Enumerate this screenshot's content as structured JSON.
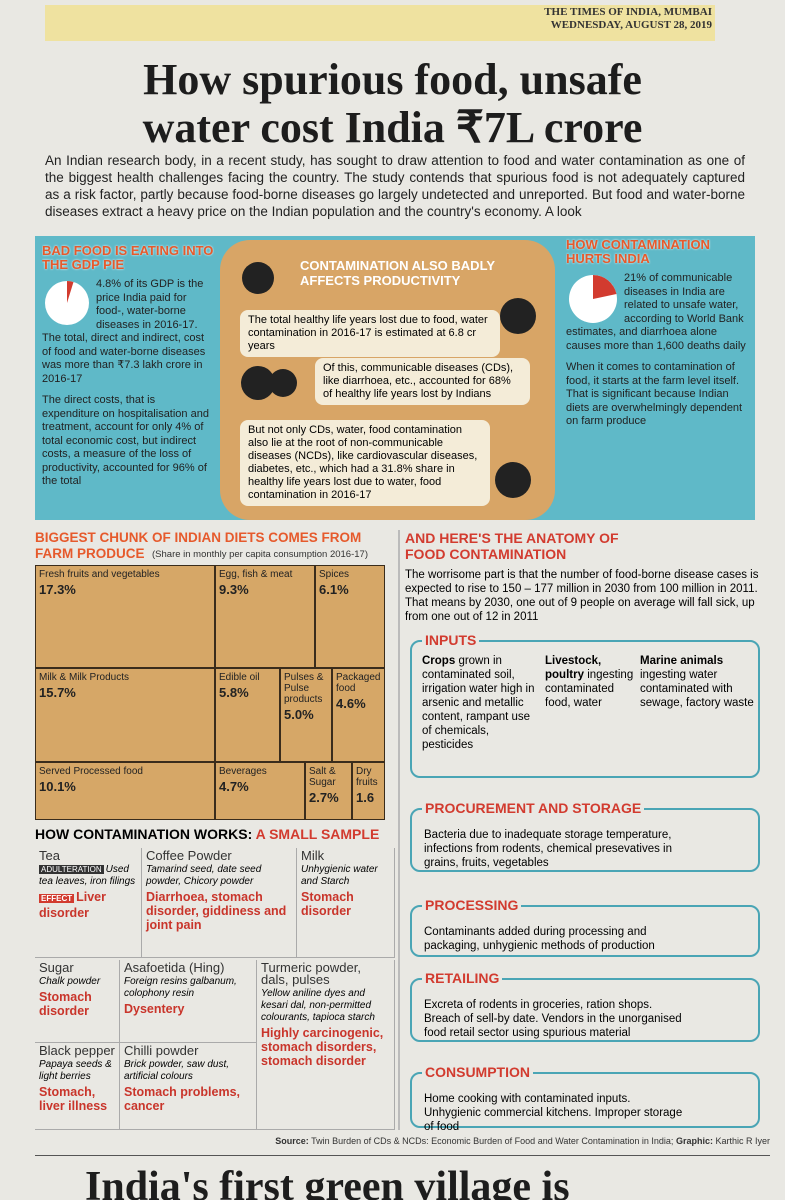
{
  "header": {
    "paper": "THE TIMES OF INDIA, MUMBAI",
    "date": "WEDNESDAY, AUGUST 28, 2019"
  },
  "title": [
    "How spurious food, unsafe",
    "water cost India ₹7L crore"
  ],
  "intro": "An Indian research body, in a recent study, has sought to draw attention to food and water contamination as one of the biggest health challenges facing the country. The study contends that spurious food is not adequately captured as a risk factor, partly because food-borne diseases go largely undetected and unreported. But food and water-borne diseases extract a heavy price on the Indian population and the country's economy. A look",
  "gdp": {
    "heading": "BAD FOOD IS EATING INTO THE GDP PIE",
    "paragraphs": [
      "4.8% of its GDP is the price India paid for food-, water-borne diseases in 2016-17. The total, direct and indirect, cost of food and water-borne diseases was more than ₹7.3 lakh crore in 2016-17",
      "The direct costs, that is expenditure on hospitalisation and treatment, account for only 4% of total economic cost, but indirect costs, a measure of the loss of productivity, accounted for 96% of the total"
    ]
  },
  "productivity": {
    "heading": "CONTAMINATION ALSO BADLY AFFECTS PRODUCTIVITY",
    "items": [
      "The total healthy life years lost due to food, water contamination in 2016-17 is estimated at 6.8 cr years",
      "Of this, communicable diseases (CDs), like diarrhoea, etc., accounted for 68% of healthy life years lost by Indians",
      "But not only CDs, water, food contamination also lie at the root of non-communicable diseases (NCDs), like cardiovascular diseases, diabetes, etc., which had a 31.8% share in healthy life years lost due to water, food contamination in 2016-17"
    ]
  },
  "hurts": {
    "heading": "HOW CONTAMINATION HURTS INDIA",
    "paragraphs": [
      "21% of communicable diseases in India are related to unsafe water, according to World Bank estimates, and diarrhoea alone causes more than 1,600 deaths daily",
      "When it comes to contamination of food, it starts at the farm level itself. That is significant because Indian diets are overwhelmingly dependent on farm produce"
    ]
  },
  "diet": {
    "heading": "BIGGEST CHUNK OF INDIAN DIETS COMES FROM FARM PRODUCE",
    "subtitle": "(Share in monthly per capita consumption 2016-17)",
    "cells": [
      {
        "label": "Fresh fruits and vegetables",
        "value": "17.3%"
      },
      {
        "label": "Egg, fish & meat",
        "value": "9.3%"
      },
      {
        "label": "Spices",
        "value": "6.1%"
      },
      {
        "label": "Milk & Milk Products",
        "value": "15.7%"
      },
      {
        "label": "Edible oil",
        "value": "5.8%"
      },
      {
        "label": "Pulses & Pulse products",
        "value": "5.0%"
      },
      {
        "label": "Packaged food",
        "value": "4.6%"
      },
      {
        "label": "Served Processed food",
        "value": "10.1%"
      },
      {
        "label": "Beverages",
        "value": "4.7%"
      },
      {
        "label": "Salt & Sugar",
        "value": "2.7%"
      },
      {
        "label": "Dry fruits",
        "value": "1.6"
      }
    ]
  },
  "works": {
    "heading": "HOW CONTAMINATION WORKS:",
    "subheading": "A SMALL SAMPLE",
    "tags": {
      "adulteration": "ADULTERATION",
      "effect": "EFFECT"
    },
    "items": [
      {
        "name": "Tea",
        "adulterant": "Used tea leaves, iron filings",
        "effect": "Liver disorder"
      },
      {
        "name": "Coffee Powder",
        "adulterant": "Tamarind seed, date seed powder, Chicory powder",
        "effect": "Diarrhoea, stomach disorder, giddiness and joint pain"
      },
      {
        "name": "Milk",
        "adulterant": "Unhygienic water and Starch",
        "effect": "Stomach disorder"
      },
      {
        "name": "Sugar",
        "adulterant": "Chalk powder",
        "effect": "Stomach disorder"
      },
      {
        "name": "Asafoetida (Hing)",
        "adulterant": "Foreign resins galbanum, colophony resin",
        "effect": "Dysentery"
      },
      {
        "name": "Turmeric powder, dals, pulses",
        "adulterant": "Yellow aniline dyes and kesari dal, non-permitted colourants, tapioca starch",
        "effect": "Highly carcinogenic, stomach disorders, stomach disorder"
      },
      {
        "name": "Black pepper",
        "adulterant": "Papaya seeds & light berries",
        "effect": "Stomach, liver illness"
      },
      {
        "name": "Chilli powder",
        "adulterant": "Brick powder, saw dust, artificial colours",
        "effect": "Stomach problems, cancer"
      }
    ]
  },
  "anatomy": {
    "heading": "AND HERE'S THE ANATOMY OF FOOD CONTAMINATION",
    "intro": "The worrisome part is that the number of food-borne disease cases is expected to rise to 150 – 177 million in 2030 from 100 million in 2011. That means by 2030, one out of 9 people on average will fall sick, up from one out of 12 in 2011",
    "inputs": {
      "heading": "INPUTS",
      "items": [
        {
          "title": "Crops",
          "text": "grown in contaminated soil, irrigation water high in arsenic and metallic content, rampant use of chemicals, pesticides"
        },
        {
          "title": "Livestock, poultry",
          "text": "ingesting contaminated food, water"
        },
        {
          "title": "Marine animals",
          "text": "ingesting water contaminated with sewage, factory waste"
        }
      ]
    },
    "stages": [
      {
        "heading": "PROCUREMENT AND STORAGE",
        "text": "Bacteria due to inadequate storage temperature, infections from rodents, chemical presevatives in grains, fruits, vegetables"
      },
      {
        "heading": "PROCESSING",
        "text": "Contaminants added during processing and packaging, unhygienic methods of production"
      },
      {
        "heading": "RETAILING",
        "text": "Excreta of rodents in groceries, ration shops. Breach of sell-by date. Vendors in the unorganised food retail sector using spurious material"
      },
      {
        "heading": "CONSUMPTION",
        "text": "Home cooking with contaminated inputs. Unhygienic commercial kitchens. Improper storage of food"
      }
    ]
  },
  "source": {
    "label": "Source:",
    "text": "Twin Burden of CDs & NCDs: Economic Burden of Food and Water Contamination in India;",
    "graphic_label": "Graphic:",
    "graphic": "Karthic R Iyer"
  },
  "next_headline": "India's first green village is"
}
